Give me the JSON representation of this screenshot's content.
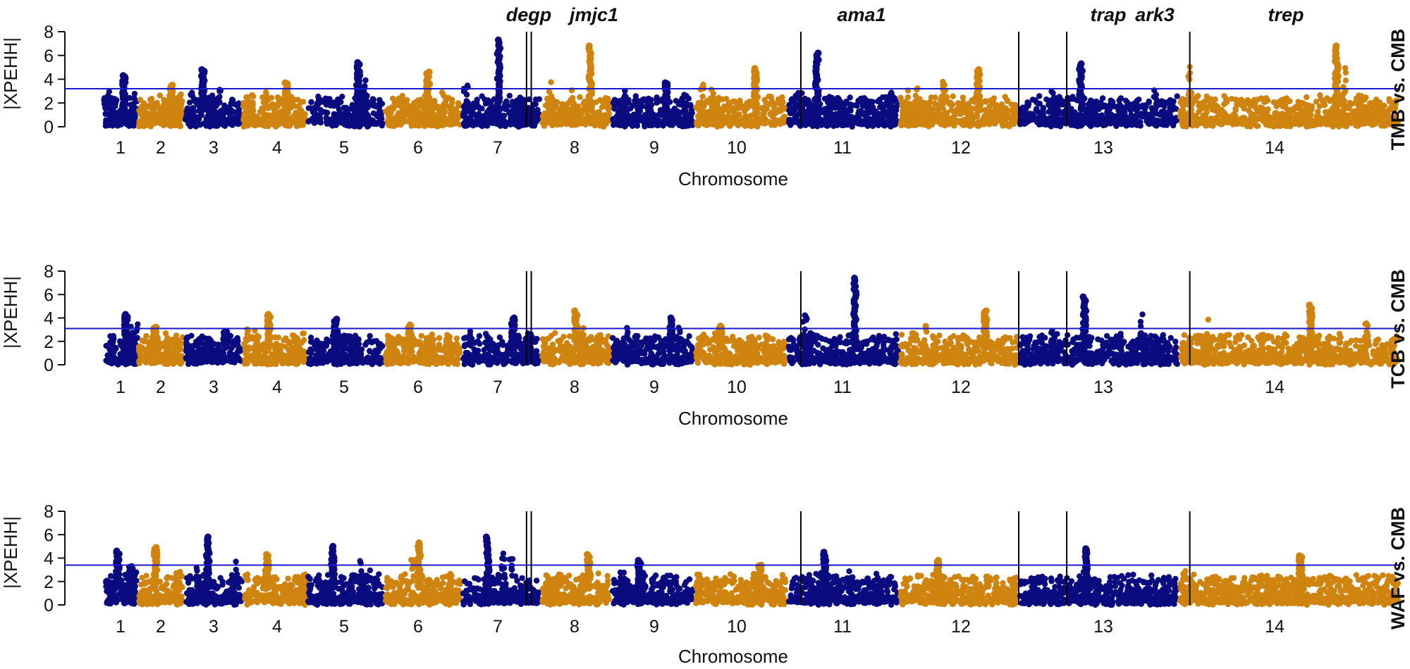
{
  "chart_data": {
    "type": "scatter",
    "subtype": "manhattan",
    "ylabel": "|XPEHH|",
    "xlabel": "Chromosome",
    "ylim": [
      0,
      8
    ],
    "yticks": [
      "0",
      "2",
      "4",
      "6",
      "8"
    ],
    "chromosomes": [
      "1",
      "2",
      "3",
      "4",
      "5",
      "6",
      "7",
      "8",
      "9",
      "10",
      "11",
      "12",
      "13",
      "14"
    ],
    "colors": {
      "odd": "#0b0b80",
      "even": "#cf8410",
      "threshold": "#1a1acc",
      "marker": "#000000"
    },
    "genes": [
      {
        "name": "degp",
        "position": 7.82,
        "panels": [
          0,
          1,
          2
        ]
      },
      {
        "name": "jmjc1",
        "position": 7.88,
        "panels": [
          0,
          1,
          2
        ]
      },
      {
        "name": "ama1",
        "position": 11.12,
        "panels": [
          0,
          1,
          2
        ]
      },
      {
        "name": "trap",
        "position": 13.0,
        "panels": [
          0,
          1,
          2
        ]
      },
      {
        "name": "ark3",
        "position": 13.3,
        "panels": [
          0,
          1,
          2
        ]
      },
      {
        "name": "trep",
        "position": 14.05,
        "panels": [
          0,
          1,
          2
        ]
      }
    ],
    "panels": [
      {
        "title": "TMB  vs. CMB",
        "threshold": 3.2,
        "peaks": [
          {
            "chrom": 1,
            "value": 4.3
          },
          {
            "chrom": 2,
            "value": 3.5
          },
          {
            "chrom": 3,
            "value": 4.8
          },
          {
            "chrom": 4,
            "value": 3.7
          },
          {
            "chrom": 5,
            "value": 5.4
          },
          {
            "chrom": 6,
            "value": 4.6
          },
          {
            "chrom": 7,
            "value": 7.3
          },
          {
            "chrom": 8,
            "value": 6.8
          },
          {
            "chrom": 9,
            "value": 3.7
          },
          {
            "chrom": 10,
            "value": 4.9
          },
          {
            "chrom": 11,
            "value": 6.2
          },
          {
            "chrom": 12,
            "value": 4.8
          },
          {
            "chrom": 13,
            "value": 5.3
          },
          {
            "chrom": 14,
            "value": 6.8
          }
        ]
      },
      {
        "title": "TCB  vs. CMB",
        "threshold": 3.1,
        "peaks": [
          {
            "chrom": 1,
            "value": 4.3
          },
          {
            "chrom": 2,
            "value": 3.2
          },
          {
            "chrom": 3,
            "value": 2.8
          },
          {
            "chrom": 4,
            "value": 4.3
          },
          {
            "chrom": 5,
            "value": 3.9
          },
          {
            "chrom": 6,
            "value": 3.4
          },
          {
            "chrom": 7,
            "value": 4.0
          },
          {
            "chrom": 8,
            "value": 4.6
          },
          {
            "chrom": 9,
            "value": 4.0
          },
          {
            "chrom": 10,
            "value": 3.3
          },
          {
            "chrom": 11,
            "value": 7.4
          },
          {
            "chrom": 12,
            "value": 4.6
          },
          {
            "chrom": 13,
            "value": 5.8
          },
          {
            "chrom": 14,
            "value": 5.1
          }
        ]
      },
      {
        "title": "WAF  vs. CMB",
        "threshold": 3.4,
        "peaks": [
          {
            "chrom": 1,
            "value": 4.6
          },
          {
            "chrom": 2,
            "value": 4.9
          },
          {
            "chrom": 3,
            "value": 5.8
          },
          {
            "chrom": 4,
            "value": 4.3
          },
          {
            "chrom": 5,
            "value": 5.0
          },
          {
            "chrom": 6,
            "value": 5.3
          },
          {
            "chrom": 7,
            "value": 5.8
          },
          {
            "chrom": 8,
            "value": 4.3
          },
          {
            "chrom": 9,
            "value": 3.8
          },
          {
            "chrom": 10,
            "value": 3.4
          },
          {
            "chrom": 11,
            "value": 4.5
          },
          {
            "chrom": 12,
            "value": 3.8
          },
          {
            "chrom": 13,
            "value": 4.8
          },
          {
            "chrom": 14,
            "value": 4.2
          }
        ]
      }
    ]
  }
}
